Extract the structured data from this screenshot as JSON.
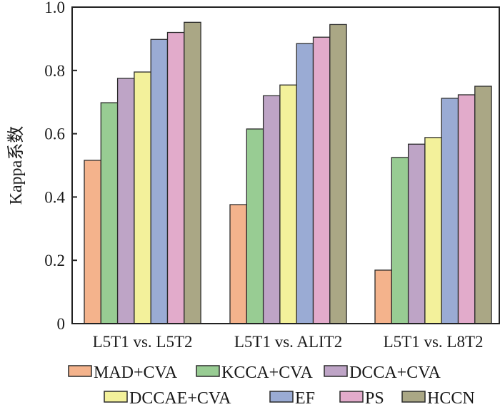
{
  "chart_data": {
    "type": "bar",
    "title": "",
    "xlabel": "",
    "ylabel": "Kappa系数",
    "ylim": [
      0,
      1.0
    ],
    "yticks": [
      0,
      0.2,
      0.4,
      0.6,
      0.8,
      1.0
    ],
    "ytick_labels": [
      "0",
      "0.2",
      "0.4",
      "0.6",
      "0.8",
      "1.0"
    ],
    "grid": false,
    "legend_position": "bottom",
    "categories": [
      "L5T1 vs. L5T2",
      "L5T1 vs. ALIT2",
      "L5T1 vs. L8T2"
    ],
    "series": [
      {
        "name": "MAD+CVA",
        "color": "#f4b38c",
        "values": [
          0.516,
          0.376,
          0.169
        ]
      },
      {
        "name": "KCCA+CVA",
        "color": "#98cc93",
        "values": [
          0.698,
          0.615,
          0.525
        ]
      },
      {
        "name": "DCCA+CVA",
        "color": "#bea4c6",
        "values": [
          0.775,
          0.72,
          0.567
        ]
      },
      {
        "name": "DCCAE+CVA",
        "color": "#f3f19b",
        "values": [
          0.795,
          0.754,
          0.588
        ]
      },
      {
        "name": "EF",
        "color": "#9aabd4",
        "values": [
          0.898,
          0.885,
          0.712
        ]
      },
      {
        "name": "PS",
        "color": "#e2abcb",
        "values": [
          0.92,
          0.905,
          0.723
        ]
      },
      {
        "name": "HCCN",
        "color": "#aaa785",
        "values": [
          0.952,
          0.945,
          0.75
        ]
      }
    ]
  }
}
